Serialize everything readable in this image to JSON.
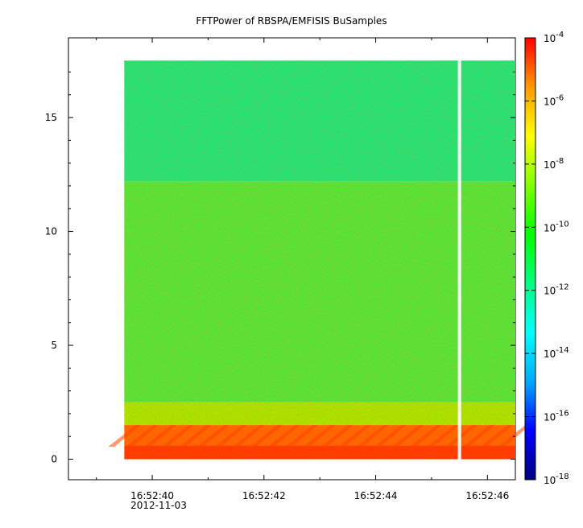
{
  "chart_data": {
    "type": "heatmap",
    "title": "FFTPower of RBSPA/EMFISIS  BuSamples",
    "xlabel": "",
    "ylabel": "",
    "x_axis": {
      "ticks": [
        "16:52:40",
        "16:52:42",
        "16:52:44",
        "16:52:46"
      ],
      "tick_values_s": [
        40,
        42,
        44,
        46
      ],
      "range_s": [
        38.5,
        46.5
      ],
      "date": "2012-11-03"
    },
    "y_axis": {
      "ticks": [
        "0",
        "5",
        "10",
        "15"
      ],
      "tick_values": [
        0,
        5,
        10,
        15
      ],
      "range": [
        -0.9,
        18.5
      ]
    },
    "data_extent": {
      "x_start_s": 39.5,
      "x_end_s": 46.5,
      "y_min": 0,
      "y_max": 17.5
    },
    "gap": {
      "x_s": 45.5
    },
    "colorbar": {
      "scale": "log",
      "range": [
        1e-18,
        0.0001
      ],
      "ticks": [
        {
          "base": "10",
          "exp": "-4",
          "value": 0.0001
        },
        {
          "base": "10",
          "exp": "-6",
          "value": 1e-06
        },
        {
          "base": "10",
          "exp": "-8",
          "value": 1e-08
        },
        {
          "base": "10",
          "exp": "-10",
          "value": 1e-10
        },
        {
          "base": "10",
          "exp": "-12",
          "value": 1e-12
        },
        {
          "base": "10",
          "exp": "-14",
          "value": 1e-14
        },
        {
          "base": "10",
          "exp": "-16",
          "value": 1e-16
        },
        {
          "base": "10",
          "exp": "-18",
          "value": 1e-18
        }
      ],
      "colormap": [
        "#000080",
        "#0000ff",
        "#00aaff",
        "#00ffff",
        "#00ff80",
        "#00ff00",
        "#80ff00",
        "#ffff00",
        "#ff9900",
        "#ff0000"
      ]
    },
    "bands": [
      {
        "y_from": 0,
        "y_to": 0.6,
        "log_power": -5.5,
        "color": "#ff3a00"
      },
      {
        "y_from": 0.6,
        "y_to": 1.5,
        "log_power": -6.2,
        "color": "#ff6600"
      },
      {
        "y_from": 1.5,
        "y_to": 2.5,
        "log_power": -9.3,
        "color": "#a8e800"
      },
      {
        "y_from": 2.5,
        "y_to": 12.2,
        "log_power": -10.3,
        "color": "#54e83a"
      },
      {
        "y_from": 12.2,
        "y_to": 17.5,
        "log_power": -11.3,
        "color": "#20e878"
      }
    ]
  }
}
